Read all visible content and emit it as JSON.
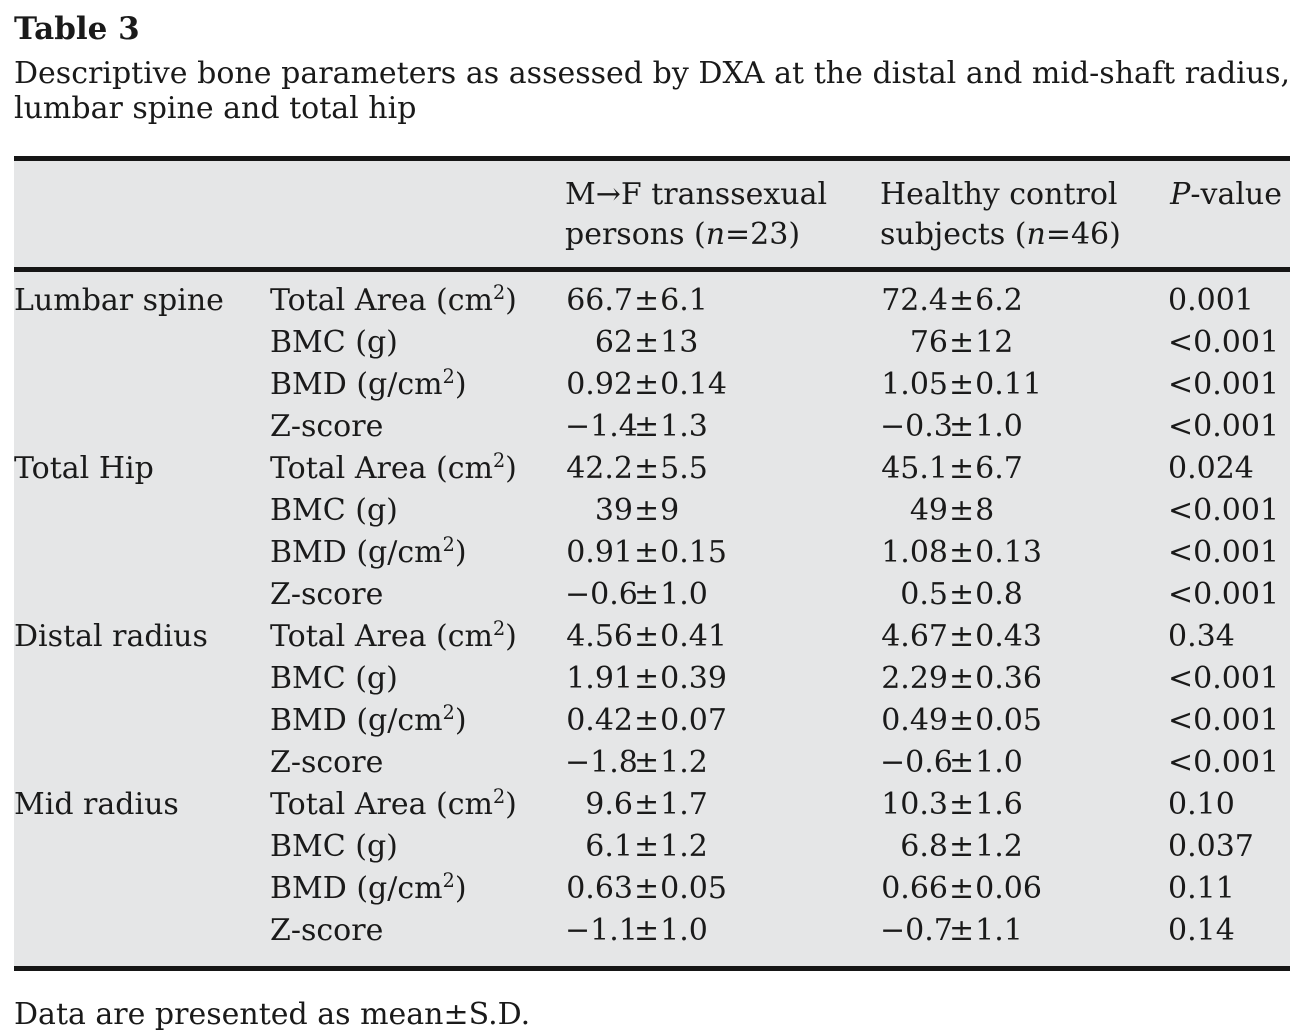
{
  "page": {
    "title": "Table 3",
    "caption": "Descriptive bone parameters as assessed by DXA at the distal and mid-shaft radius, lumbar spine and total hip",
    "footnote": "Data are presented as mean±S.D."
  },
  "colors": {
    "table_background": "#e5e6e7",
    "rule": "#161616",
    "text": "#1a1a1a"
  },
  "table": {
    "header": {
      "group1": "M→F transsexual persons (n=23)",
      "group2": "Healthy control subjects (n=46)",
      "pvalue": "P-value"
    },
    "sections": [
      {
        "label": "Lumbar spine",
        "rows": [
          {
            "parameter": "Total Area (cm²)",
            "group1": "66.7±6.1",
            "group2": "72.4±6.2",
            "p": "0.001"
          },
          {
            "parameter": "BMC (g)",
            "group1": "62±13",
            "group2": "76±12",
            "p": "<0.001"
          },
          {
            "parameter": "BMD (g/cm²)",
            "group1": "0.92±0.14",
            "group2": "1.05±0.11",
            "p": "<0.001"
          },
          {
            "parameter": "Z-score",
            "group1": "−1.4±1.3",
            "group2": "−0.3±1.0",
            "p": "<0.001"
          }
        ]
      },
      {
        "label": "Total Hip",
        "rows": [
          {
            "parameter": "Total Area (cm²)",
            "group1": "42.2±5.5",
            "group2": "45.1±6.7",
            "p": "0.024"
          },
          {
            "parameter": "BMC (g)",
            "group1": "39±9",
            "group2": "49±8",
            "p": "<0.001"
          },
          {
            "parameter": "BMD (g/cm²)",
            "group1": "0.91±0.15",
            "group2": "1.08±0.13",
            "p": "<0.001"
          },
          {
            "parameter": "Z-score",
            "group1": "−0.6±1.0",
            "group2": "0.5±0.8",
            "p": "<0.001"
          }
        ]
      },
      {
        "label": "Distal radius",
        "rows": [
          {
            "parameter": "Total Area (cm²)",
            "group1": "4.56±0.41",
            "group2": "4.67±0.43",
            "p": "0.34"
          },
          {
            "parameter": "BMC (g)",
            "group1": "1.91±0.39",
            "group2": "2.29±0.36",
            "p": "<0.001"
          },
          {
            "parameter": "BMD (g/cm²)",
            "group1": "0.42±0.07",
            "group2": "0.49±0.05",
            "p": "<0.001"
          },
          {
            "parameter": "Z-score",
            "group1": "−1.8±1.2",
            "group2": "−0.6±1.0",
            "p": "<0.001"
          }
        ]
      },
      {
        "label": "Mid radius",
        "rows": [
          {
            "parameter": "Total Area (cm²)",
            "group1": "9.6±1.7",
            "group2": "10.3±1.6",
            "p": "0.10"
          },
          {
            "parameter": "BMC (g)",
            "group1": "6.1±1.2",
            "group2": "6.8±1.2",
            "p": "0.037"
          },
          {
            "parameter": "BMD (g/cm²)",
            "group1": "0.63±0.05",
            "group2": "0.66±0.06",
            "p": "0.11"
          },
          {
            "parameter": "Z-score",
            "group1": "−1.1±1.0",
            "group2": "−0.7±1.1",
            "p": "0.14"
          }
        ]
      }
    ]
  }
}
